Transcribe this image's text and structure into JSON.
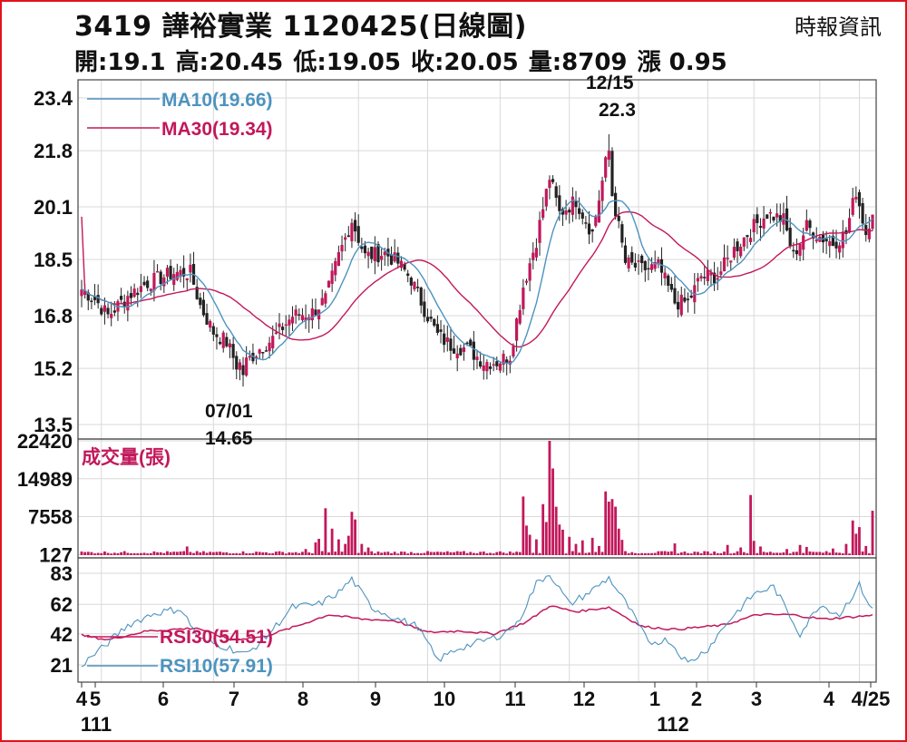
{
  "header": {
    "title": "3419  譁裕實業 1120425(日線圖)",
    "source": "時報資訊",
    "open": "開:19.1",
    "high": "高:20.45",
    "low": "低:19.05",
    "close": "收:20.05",
    "volume": "量:8709",
    "change": "漲 0.95"
  },
  "colors": {
    "frame": "#e0141e",
    "candle": "#c2185b",
    "ma10": "#4d93bf",
    "ma30": "#c2185b",
    "volume": "#c2185b",
    "rsi30": "#c2185b",
    "rsi10": "#4d93bf",
    "grid": "#d9d9d9"
  },
  "chart_data": [
    {
      "type": "candlestick",
      "panel": "price",
      "y_ticks": [
        "23.4",
        "21.8",
        "20.1",
        "18.5",
        "16.8",
        "15.2",
        "13.5"
      ],
      "ylim": [
        13.5,
        23.4
      ],
      "x_ticks": [
        "4",
        "5",
        "6",
        "7",
        "8",
        "9",
        "10",
        "11",
        "12",
        "1",
        "2",
        "3",
        "4",
        "4/25"
      ],
      "x_year_labels": [
        "111",
        "112"
      ],
      "legend": [
        {
          "name": "MA10",
          "value": "MA10(19.66)"
        },
        {
          "name": "MA30",
          "value": "MA30(19.34)"
        }
      ],
      "annotations": [
        {
          "date": "07/01",
          "value": "14.65",
          "type": "low"
        },
        {
          "date": "12/15",
          "value": "22.3",
          "type": "high"
        }
      ],
      "anchors": [
        {
          "i": 0,
          "v": 17.6
        },
        {
          "i": 4,
          "v": 17.3
        },
        {
          "i": 8,
          "v": 16.8
        },
        {
          "i": 14,
          "v": 17.4
        },
        {
          "i": 20,
          "v": 17.8
        },
        {
          "i": 28,
          "v": 18.1
        },
        {
          "i": 33,
          "v": 18.1
        },
        {
          "i": 36,
          "v": 17.1
        },
        {
          "i": 40,
          "v": 16.3
        },
        {
          "i": 44,
          "v": 16.0
        },
        {
          "i": 47,
          "v": 15.3
        },
        {
          "i": 50,
          "v": 15.4
        },
        {
          "i": 54,
          "v": 15.8
        },
        {
          "i": 58,
          "v": 16.1
        },
        {
          "i": 64,
          "v": 16.8
        },
        {
          "i": 70,
          "v": 16.9
        },
        {
          "i": 74,
          "v": 17.3
        },
        {
          "i": 78,
          "v": 18.6
        },
        {
          "i": 82,
          "v": 19.7
        },
        {
          "i": 86,
          "v": 18.6
        },
        {
          "i": 92,
          "v": 18.7
        },
        {
          "i": 96,
          "v": 18.4
        },
        {
          "i": 100,
          "v": 17.9
        },
        {
          "i": 104,
          "v": 17.0
        },
        {
          "i": 108,
          "v": 16.2
        },
        {
          "i": 112,
          "v": 15.9
        },
        {
          "i": 117,
          "v": 15.8
        },
        {
          "i": 122,
          "v": 15.4
        },
        {
          "i": 126,
          "v": 15.4
        },
        {
          "i": 130,
          "v": 15.6
        },
        {
          "i": 134,
          "v": 17.7
        },
        {
          "i": 138,
          "v": 19.1
        },
        {
          "i": 142,
          "v": 21.0
        },
        {
          "i": 145,
          "v": 19.9
        },
        {
          "i": 150,
          "v": 20.3
        },
        {
          "i": 155,
          "v": 19.3
        },
        {
          "i": 159,
          "v": 21.4
        },
        {
          "i": 162,
          "v": 20.0
        },
        {
          "i": 165,
          "v": 18.4
        },
        {
          "i": 170,
          "v": 18.2
        },
        {
          "i": 175,
          "v": 18.3
        },
        {
          "i": 180,
          "v": 17.2
        },
        {
          "i": 184,
          "v": 17.2
        },
        {
          "i": 188,
          "v": 18.0
        },
        {
          "i": 193,
          "v": 18.0
        },
        {
          "i": 198,
          "v": 18.8
        },
        {
          "i": 203,
          "v": 19.4
        },
        {
          "i": 208,
          "v": 19.9
        },
        {
          "i": 213,
          "v": 19.7
        },
        {
          "i": 216,
          "v": 18.6
        },
        {
          "i": 220,
          "v": 19.5
        },
        {
          "i": 224,
          "v": 19.2
        },
        {
          "i": 228,
          "v": 19.0
        },
        {
          "i": 232,
          "v": 19.3
        },
        {
          "i": 235,
          "v": 20.6
        },
        {
          "i": 238,
          "v": 19.3
        },
        {
          "i": 240,
          "v": 20.05
        }
      ],
      "low_point": {
        "i": 49,
        "v": 14.65
      },
      "high_point": {
        "i": 160,
        "v": 22.3
      }
    },
    {
      "type": "bar",
      "panel": "volume",
      "label": "成交量(張)",
      "y_ticks": [
        "22420",
        "14989",
        "7558",
        "127"
      ],
      "ylim": [
        0,
        22420
      ],
      "base": 300,
      "spikes": [
        {
          "i": 32,
          "v": 1700
        },
        {
          "i": 68,
          "v": 1200
        },
        {
          "i": 71,
          "v": 2500
        },
        {
          "i": 72,
          "v": 3200
        },
        {
          "i": 74,
          "v": 9200
        },
        {
          "i": 76,
          "v": 5200
        },
        {
          "i": 78,
          "v": 3100
        },
        {
          "i": 80,
          "v": 2200
        },
        {
          "i": 81,
          "v": 3800
        },
        {
          "i": 82,
          "v": 8500
        },
        {
          "i": 83,
          "v": 7000
        },
        {
          "i": 85,
          "v": 2200
        },
        {
          "i": 87,
          "v": 1500
        },
        {
          "i": 134,
          "v": 11500
        },
        {
          "i": 135,
          "v": 5800
        },
        {
          "i": 136,
          "v": 4000
        },
        {
          "i": 138,
          "v": 3100
        },
        {
          "i": 140,
          "v": 10000
        },
        {
          "i": 141,
          "v": 6500
        },
        {
          "i": 142,
          "v": 22420
        },
        {
          "i": 143,
          "v": 17000
        },
        {
          "i": 144,
          "v": 9500
        },
        {
          "i": 145,
          "v": 6000
        },
        {
          "i": 146,
          "v": 5000
        },
        {
          "i": 148,
          "v": 3600
        },
        {
          "i": 150,
          "v": 2200
        },
        {
          "i": 152,
          "v": 2900
        },
        {
          "i": 155,
          "v": 3400
        },
        {
          "i": 157,
          "v": 1800
        },
        {
          "i": 159,
          "v": 12500
        },
        {
          "i": 160,
          "v": 10500
        },
        {
          "i": 161,
          "v": 11000
        },
        {
          "i": 162,
          "v": 9500
        },
        {
          "i": 163,
          "v": 5200
        },
        {
          "i": 164,
          "v": 3000
        },
        {
          "i": 180,
          "v": 2300
        },
        {
          "i": 196,
          "v": 2000
        },
        {
          "i": 200,
          "v": 1500
        },
        {
          "i": 203,
          "v": 11800
        },
        {
          "i": 204,
          "v": 2800
        },
        {
          "i": 206,
          "v": 1700
        },
        {
          "i": 214,
          "v": 1200
        },
        {
          "i": 218,
          "v": 2000
        },
        {
          "i": 220,
          "v": 1600
        },
        {
          "i": 228,
          "v": 1300
        },
        {
          "i": 232,
          "v": 2200
        },
        {
          "i": 234,
          "v": 6800
        },
        {
          "i": 235,
          "v": 4200
        },
        {
          "i": 236,
          "v": 5500
        },
        {
          "i": 238,
          "v": 1800
        },
        {
          "i": 240,
          "v": 8709
        }
      ]
    },
    {
      "type": "line",
      "panel": "rsi",
      "y_ticks": [
        "83",
        "62",
        "42",
        "21"
      ],
      "ylim": [
        17,
        87
      ],
      "series": [
        {
          "name": "RSI30",
          "legend": "RSI30(54.51)",
          "anchors": [
            {
              "i": 0,
              "v": 41
            },
            {
              "i": 8,
              "v": 38
            },
            {
              "i": 20,
              "v": 44
            },
            {
              "i": 35,
              "v": 46
            },
            {
              "i": 45,
              "v": 38
            },
            {
              "i": 55,
              "v": 40
            },
            {
              "i": 65,
              "v": 47
            },
            {
              "i": 75,
              "v": 55
            },
            {
              "i": 85,
              "v": 52
            },
            {
              "i": 95,
              "v": 51
            },
            {
              "i": 105,
              "v": 43
            },
            {
              "i": 115,
              "v": 44
            },
            {
              "i": 125,
              "v": 42
            },
            {
              "i": 135,
              "v": 50
            },
            {
              "i": 142,
              "v": 61
            },
            {
              "i": 150,
              "v": 57
            },
            {
              "i": 160,
              "v": 60
            },
            {
              "i": 170,
              "v": 47
            },
            {
              "i": 180,
              "v": 45
            },
            {
              "i": 195,
              "v": 48
            },
            {
              "i": 205,
              "v": 55
            },
            {
              "i": 215,
              "v": 55
            },
            {
              "i": 225,
              "v": 52
            },
            {
              "i": 240,
              "v": 54.51
            }
          ]
        },
        {
          "name": "RSI10",
          "legend": "RSI10(57.91)",
          "anchors": [
            {
              "i": 0,
              "v": 21
            },
            {
              "i": 6,
              "v": 32
            },
            {
              "i": 14,
              "v": 48
            },
            {
              "i": 22,
              "v": 56
            },
            {
              "i": 30,
              "v": 59
            },
            {
              "i": 36,
              "v": 38
            },
            {
              "i": 44,
              "v": 33
            },
            {
              "i": 50,
              "v": 28
            },
            {
              "i": 56,
              "v": 40
            },
            {
              "i": 64,
              "v": 60
            },
            {
              "i": 72,
              "v": 62
            },
            {
              "i": 78,
              "v": 70
            },
            {
              "i": 82,
              "v": 79
            },
            {
              "i": 88,
              "v": 60
            },
            {
              "i": 96,
              "v": 52
            },
            {
              "i": 102,
              "v": 47
            },
            {
              "i": 108,
              "v": 24
            },
            {
              "i": 114,
              "v": 32
            },
            {
              "i": 120,
              "v": 36
            },
            {
              "i": 126,
              "v": 40
            },
            {
              "i": 132,
              "v": 48
            },
            {
              "i": 138,
              "v": 76
            },
            {
              "i": 142,
              "v": 83
            },
            {
              "i": 148,
              "v": 62
            },
            {
              "i": 154,
              "v": 70
            },
            {
              "i": 160,
              "v": 80
            },
            {
              "i": 166,
              "v": 60
            },
            {
              "i": 172,
              "v": 36
            },
            {
              "i": 178,
              "v": 38
            },
            {
              "i": 184,
              "v": 22
            },
            {
              "i": 190,
              "v": 32
            },
            {
              "i": 196,
              "v": 50
            },
            {
              "i": 204,
              "v": 69
            },
            {
              "i": 210,
              "v": 74
            },
            {
              "i": 214,
              "v": 58
            },
            {
              "i": 218,
              "v": 42
            },
            {
              "i": 224,
              "v": 62
            },
            {
              "i": 230,
              "v": 55
            },
            {
              "i": 236,
              "v": 75
            },
            {
              "i": 240,
              "v": 57.91
            }
          ]
        }
      ]
    }
  ]
}
